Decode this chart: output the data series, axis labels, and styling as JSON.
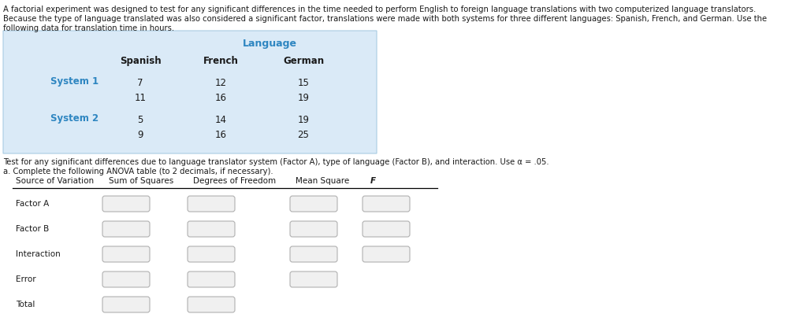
{
  "intro_text_line1": "A factorial experiment was designed to test for any significant differences in the time needed to perform English to foreign language translations with two computerized language translators.",
  "intro_text_line2": "Because the type of language translated was also considered a significant factor, translations were made with both systems for three different languages: Spanish, French, and German. Use the",
  "intro_text_line3": "following data for translation time in hours.",
  "language_header": "Language",
  "col_headers": [
    "Spanish",
    "French",
    "German"
  ],
  "row_labels": [
    "System 1",
    "System 2"
  ],
  "data": {
    "System 1": {
      "Spanish": [
        7,
        11
      ],
      "French": [
        12,
        16
      ],
      "German": [
        15,
        19
      ]
    },
    "System 2": {
      "Spanish": [
        5,
        9
      ],
      "French": [
        14,
        16
      ],
      "German": [
        19,
        25
      ]
    }
  },
  "test_text": "Test for any significant differences due to language translator system (Factor A), type of language (Factor B), and interaction. Use α = .05.",
  "instruction_text": "a. Complete the following ANOVA table (to 2 decimals, if necessary).",
  "anova_headers": [
    "Source of Variation",
    "Sum of Squares",
    "Degrees of Freedom",
    "Mean Square",
    "F"
  ],
  "anova_rows": [
    "Factor A",
    "Factor B",
    "Interaction",
    "Error",
    "Total"
  ],
  "anova_boxes": {
    "Factor A": 4,
    "Factor B": 4,
    "Interaction": 4,
    "Error": 3,
    "Total": 2
  },
  "table_bg": "#daeaf7",
  "table_border": "#a9cce3",
  "header_color": "#2e86c1",
  "system_color": "#2e86c1",
  "text_color": "#1a1a1a",
  "box_facecolor": "#f0f0f0",
  "box_edgecolor": "#b0b0b0"
}
